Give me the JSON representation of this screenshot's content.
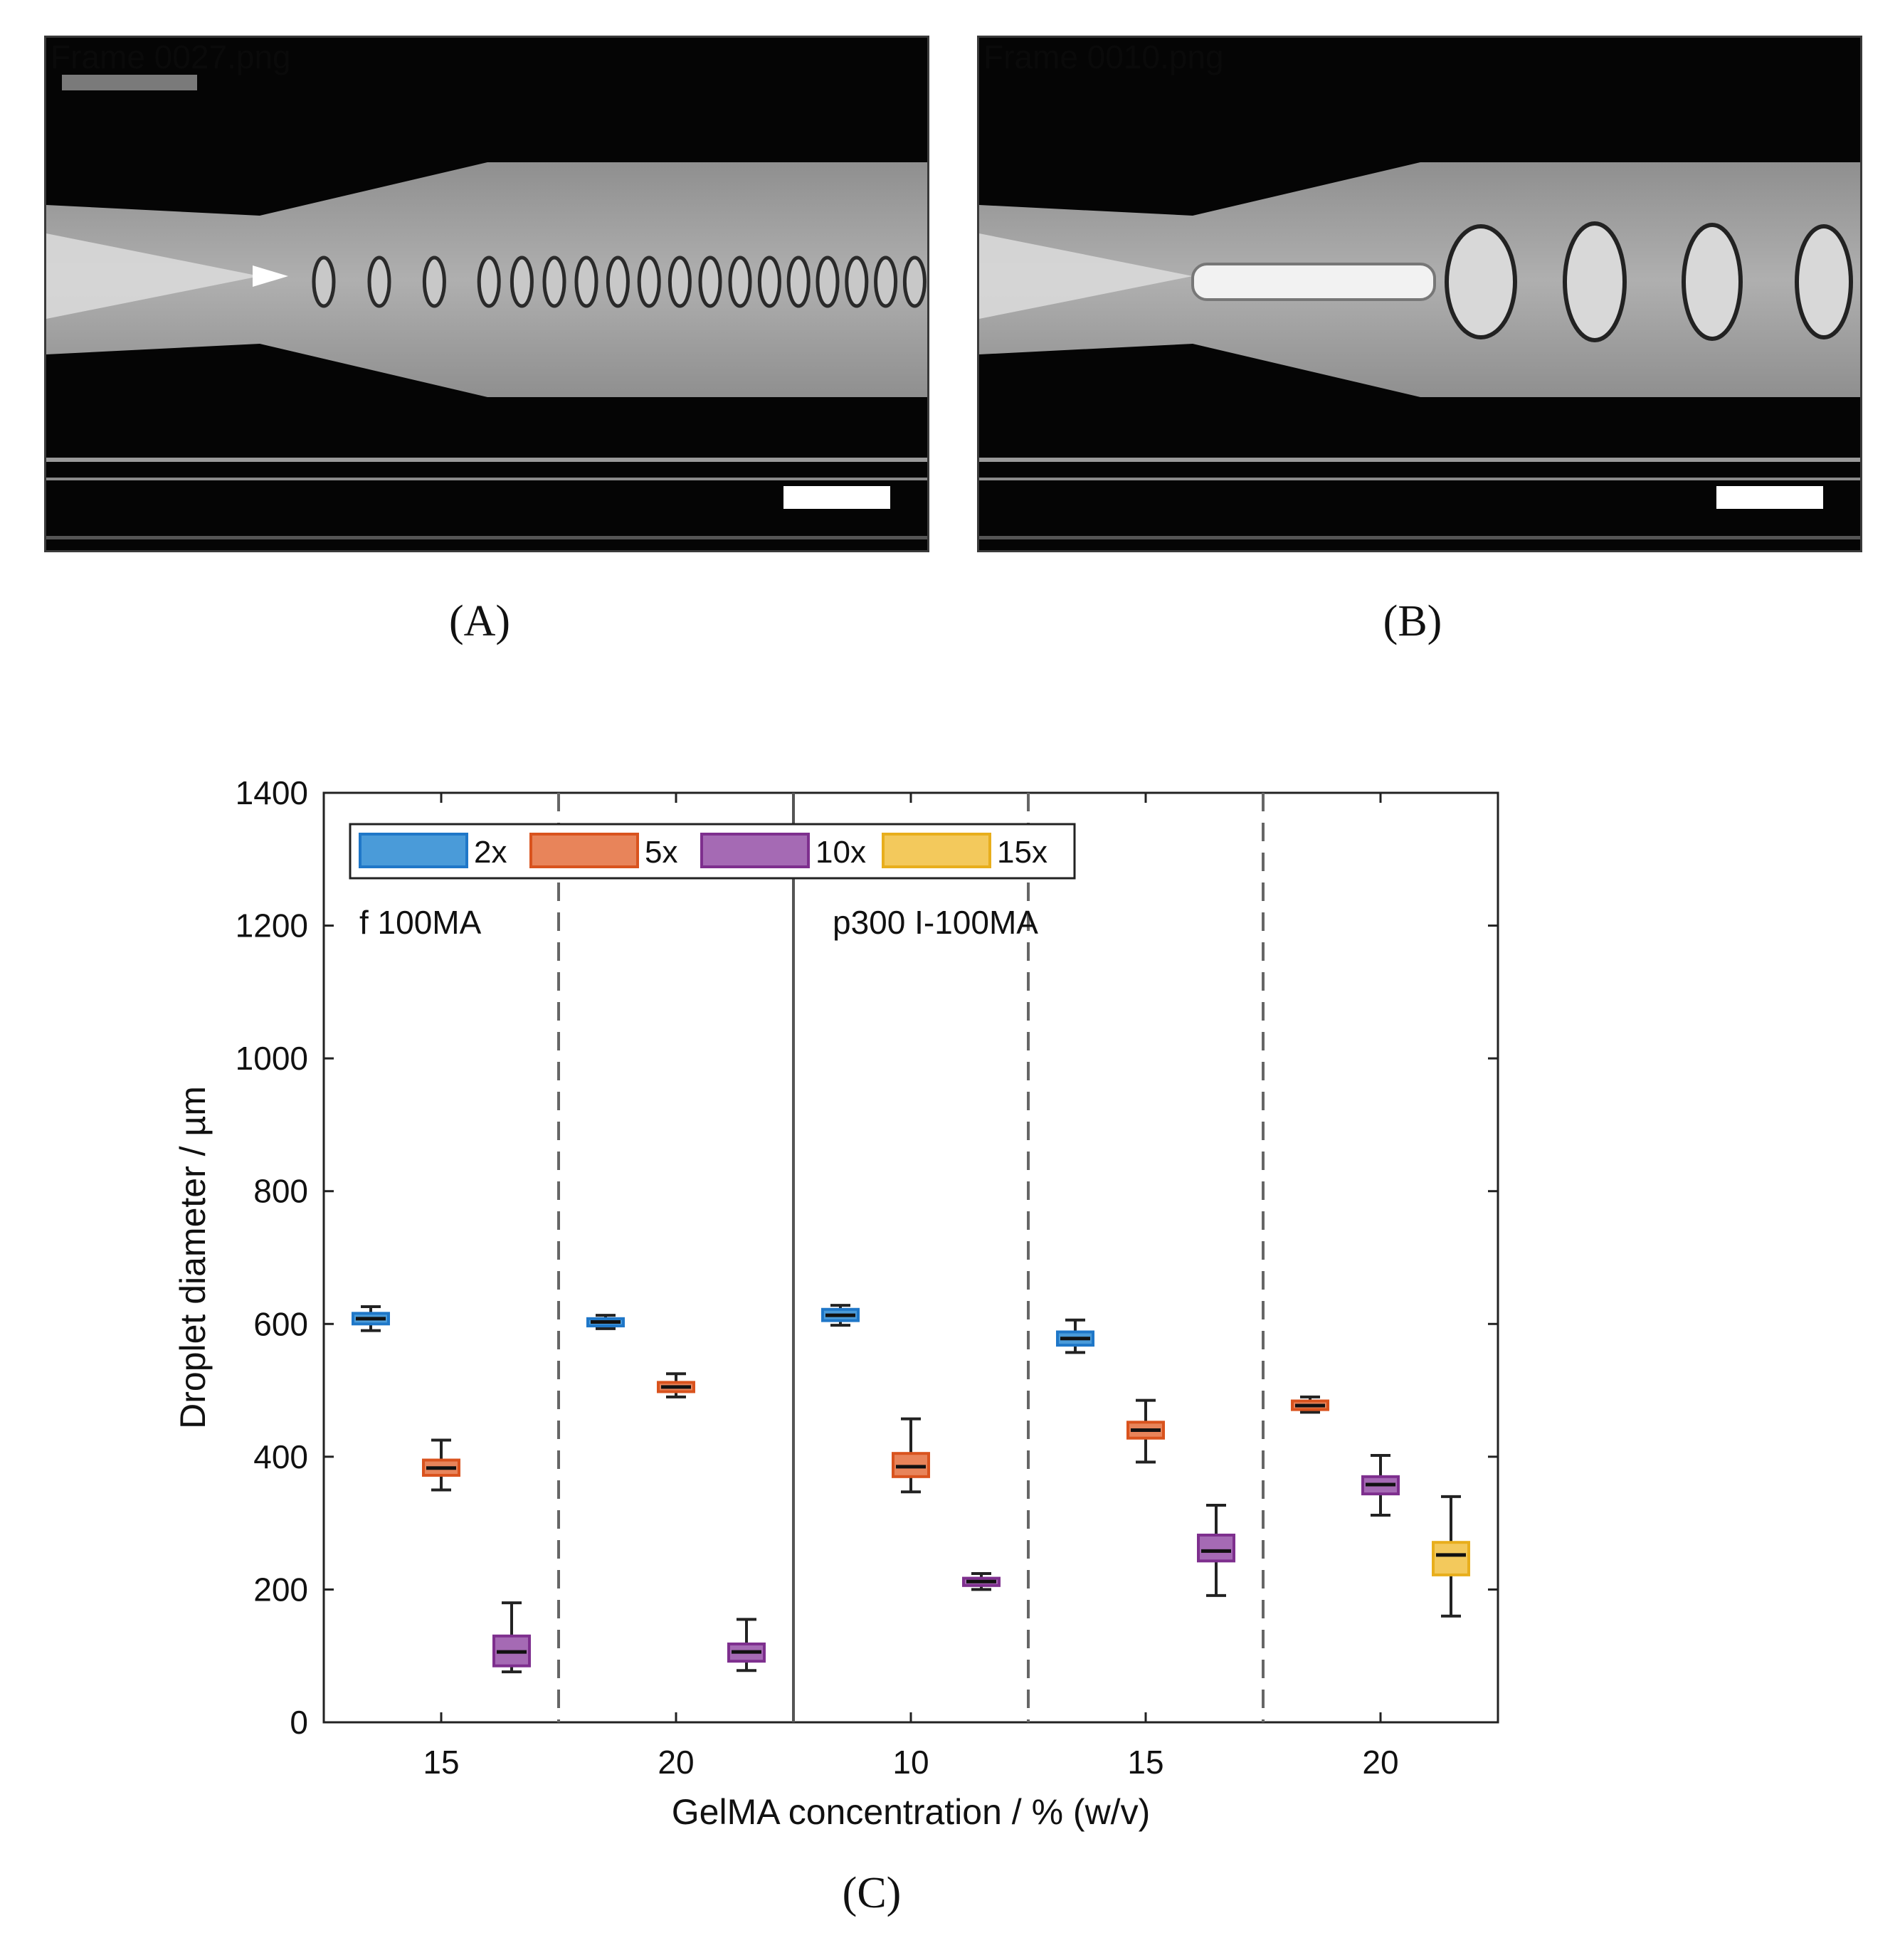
{
  "panels": {
    "a": {
      "frame_label": "Frame 0027.png",
      "letter": "(A)"
    },
    "b": {
      "frame_label": "Frame 0010.png",
      "letter": "(B)"
    },
    "c": {
      "letter": "(C)"
    }
  },
  "chart_data": {
    "type": "box",
    "xlabel": "GelMA concentration / % (w/v)",
    "ylabel": "Droplet diameter / µm",
    "ylim": [
      0,
      1400
    ],
    "yticks": [
      0,
      200,
      400,
      600,
      800,
      1000,
      1200,
      1400
    ],
    "grid": false,
    "legend_position": "top-left",
    "legend": [
      {
        "name": "2x",
        "color": "#1f77c8",
        "fill": "#4a9bd9"
      },
      {
        "name": "5x",
        "color": "#d9531e",
        "fill": "#e8845a"
      },
      {
        "name": "10x",
        "color": "#7e2f8e",
        "fill": "#a56ab4"
      },
      {
        "name": "15x",
        "color": "#e8ae1c",
        "fill": "#f3c95c"
      }
    ],
    "region_labels": [
      "f 100MA",
      "p300 I-100MA"
    ],
    "groups": [
      {
        "label": "15",
        "region": "f 100MA",
        "boxes": [
          {
            "series": "2x",
            "whisker_low": 590,
            "q1": 600,
            "median": 608,
            "q3": 616,
            "whisker_high": 626
          },
          {
            "series": "5x",
            "whisker_low": 350,
            "q1": 372,
            "median": 383,
            "q3": 395,
            "whisker_high": 425
          },
          {
            "series": "10x",
            "whisker_low": 76,
            "q1": 85,
            "median": 106,
            "q3": 130,
            "whisker_high": 180
          }
        ]
      },
      {
        "label": "20",
        "region": "f 100MA",
        "boxes": [
          {
            "series": "2x",
            "whisker_low": 593,
            "q1": 597,
            "median": 603,
            "q3": 608,
            "whisker_high": 613
          },
          {
            "series": "5x",
            "whisker_low": 490,
            "q1": 498,
            "median": 505,
            "q3": 512,
            "whisker_high": 525
          },
          {
            "series": "10x",
            "whisker_low": 78,
            "q1": 92,
            "median": 106,
            "q3": 118,
            "whisker_high": 155
          }
        ]
      },
      {
        "label": "10",
        "region": "p300 I-100MA",
        "boxes": [
          {
            "series": "2x",
            "whisker_low": 598,
            "q1": 605,
            "median": 613,
            "q3": 622,
            "whisker_high": 628
          },
          {
            "series": "5x",
            "whisker_low": 347,
            "q1": 370,
            "median": 385,
            "q3": 405,
            "whisker_high": 457
          },
          {
            "series": "10x",
            "whisker_low": 200,
            "q1": 206,
            "median": 212,
            "q3": 217,
            "whisker_high": 224
          }
        ]
      },
      {
        "label": "15",
        "region": "p300 I-100MA",
        "boxes": [
          {
            "series": "2x",
            "whisker_low": 557,
            "q1": 568,
            "median": 578,
            "q3": 588,
            "whisker_high": 606
          },
          {
            "series": "5x",
            "whisker_low": 392,
            "q1": 428,
            "median": 440,
            "q3": 452,
            "whisker_high": 485
          },
          {
            "series": "10x",
            "whisker_low": 191,
            "q1": 243,
            "median": 258,
            "q3": 282,
            "whisker_high": 327
          }
        ]
      },
      {
        "label": "20",
        "region": "p300 I-100MA",
        "boxes": [
          {
            "series": "5x",
            "whisker_low": 467,
            "q1": 471,
            "median": 477,
            "q3": 484,
            "whisker_high": 490
          },
          {
            "series": "10x",
            "whisker_low": 312,
            "q1": 344,
            "median": 358,
            "q3": 370,
            "whisker_high": 402
          },
          {
            "series": "15x",
            "whisker_low": 160,
            "q1": 222,
            "median": 252,
            "q3": 271,
            "whisker_high": 340
          }
        ]
      }
    ]
  }
}
